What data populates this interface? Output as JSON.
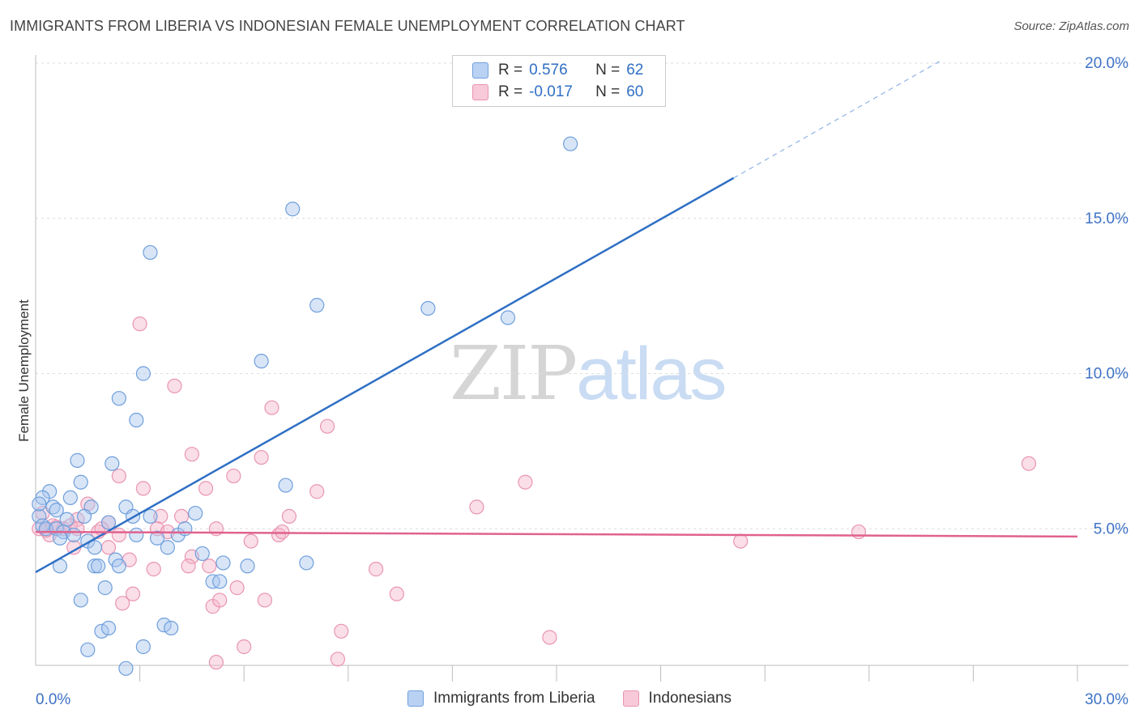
{
  "title": "IMMIGRANTS FROM LIBERIA VS INDONESIAN FEMALE UNEMPLOYMENT CORRELATION CHART",
  "source": "Source: ZipAtlas.com",
  "watermark": {
    "zip": "ZIP",
    "atlas": "atlas"
  },
  "chart_data": {
    "type": "scatter",
    "title": "IMMIGRANTS FROM LIBERIA VS INDONESIAN FEMALE UNEMPLOYMENT CORRELATION CHART",
    "ylabel": "Female Unemployment",
    "xlabel": "",
    "xlim": [
      0,
      30
    ],
    "ylim": [
      0,
      20
    ],
    "x_tick_labels": [
      "0.0%",
      "30.0%"
    ],
    "y_ticks": [
      5,
      10,
      15,
      20
    ],
    "y_tick_labels": [
      "5.0%",
      "10.0%",
      "15.0%",
      "20.0%"
    ],
    "grid": "horizontal dashed",
    "legend_position": "top-center",
    "colors": {
      "blue": "#2f6fc4",
      "blue_fill": "#a9c6ee",
      "pink": "#e0628f",
      "pink_fill": "#f4b6cb"
    },
    "legend": [
      {
        "r_label": "R =",
        "r_value": "0.576",
        "n_label": "N =",
        "n_value": "62"
      },
      {
        "r_label": "R =",
        "r_value": "-0.017",
        "n_label": "N =",
        "n_value": "60"
      }
    ],
    "series": [
      {
        "name": "Immigrants from Liberia",
        "color": "#2f6fc4",
        "trend": {
          "x0": 0,
          "y0": 3.6,
          "x1": 20.1,
          "y1": 16.3,
          "dash_to_x": 26.1,
          "dash_to_y": 20.1
        },
        "points": [
          [
            15.4,
            17.4
          ],
          [
            7.4,
            15.3
          ],
          [
            3.3,
            13.9
          ],
          [
            8.1,
            12.2
          ],
          [
            11.3,
            12.1
          ],
          [
            13.6,
            11.8
          ],
          [
            6.5,
            10.4
          ],
          [
            3.1,
            10.0
          ],
          [
            2.4,
            9.2
          ],
          [
            2.9,
            8.5
          ],
          [
            1.2,
            7.2
          ],
          [
            2.2,
            7.1
          ],
          [
            7.2,
            6.4
          ],
          [
            1.3,
            6.5
          ],
          [
            0.4,
            6.2
          ],
          [
            0.2,
            6.0
          ],
          [
            1.0,
            6.0
          ],
          [
            0.5,
            5.7
          ],
          [
            0.6,
            5.6
          ],
          [
            1.6,
            5.7
          ],
          [
            2.6,
            5.7
          ],
          [
            0.1,
            5.4
          ],
          [
            1.4,
            5.4
          ],
          [
            2.8,
            5.4
          ],
          [
            3.3,
            5.4
          ],
          [
            4.6,
            5.5
          ],
          [
            0.9,
            5.3
          ],
          [
            0.2,
            5.1
          ],
          [
            0.3,
            5.0
          ],
          [
            0.6,
            5.0
          ],
          [
            0.8,
            4.9
          ],
          [
            1.1,
            4.8
          ],
          [
            1.5,
            4.6
          ],
          [
            2.1,
            5.2
          ],
          [
            2.9,
            4.8
          ],
          [
            3.5,
            4.7
          ],
          [
            4.1,
            4.8
          ],
          [
            4.3,
            5.0
          ],
          [
            1.7,
            4.4
          ],
          [
            3.8,
            4.4
          ],
          [
            0.7,
            4.7
          ],
          [
            2.3,
            4.0
          ],
          [
            1.7,
            3.8
          ],
          [
            1.8,
            3.8
          ],
          [
            0.7,
            3.8
          ],
          [
            2.4,
            3.8
          ],
          [
            4.8,
            4.2
          ],
          [
            5.4,
            3.9
          ],
          [
            6.1,
            3.8
          ],
          [
            7.8,
            3.9
          ],
          [
            5.1,
            3.3
          ],
          [
            5.3,
            3.3
          ],
          [
            2.0,
            3.1
          ],
          [
            1.3,
            2.7
          ],
          [
            1.9,
            1.7
          ],
          [
            2.1,
            1.8
          ],
          [
            3.7,
            1.9
          ],
          [
            3.9,
            1.8
          ],
          [
            1.5,
            1.1
          ],
          [
            3.1,
            1.2
          ],
          [
            2.6,
            0.5
          ],
          [
            0.1,
            5.8
          ]
        ]
      },
      {
        "name": "Indonesians",
        "color": "#e0628f",
        "trend": {
          "x0": 0,
          "y0": 4.9,
          "x1": 30,
          "y1": 4.75
        },
        "points": [
          [
            3.0,
            11.6
          ],
          [
            4.0,
            9.6
          ],
          [
            6.8,
            8.9
          ],
          [
            8.4,
            8.3
          ],
          [
            4.5,
            7.4
          ],
          [
            6.5,
            7.3
          ],
          [
            28.6,
            7.1
          ],
          [
            2.4,
            6.7
          ],
          [
            5.7,
            6.7
          ],
          [
            14.1,
            6.5
          ],
          [
            3.1,
            6.3
          ],
          [
            4.9,
            6.3
          ],
          [
            8.1,
            6.2
          ],
          [
            12.7,
            5.7
          ],
          [
            1.5,
            5.8
          ],
          [
            0.2,
            5.5
          ],
          [
            1.2,
            5.3
          ],
          [
            2.1,
            5.2
          ],
          [
            3.6,
            5.4
          ],
          [
            4.2,
            5.4
          ],
          [
            7.3,
            5.4
          ],
          [
            0.5,
            5.1
          ],
          [
            0.8,
            5.0
          ],
          [
            1.0,
            5.1
          ],
          [
            1.2,
            5.0
          ],
          [
            1.8,
            4.9
          ],
          [
            2.4,
            4.8
          ],
          [
            3.5,
            5.0
          ],
          [
            3.8,
            4.9
          ],
          [
            5.2,
            5.0
          ],
          [
            6.2,
            4.6
          ],
          [
            7.0,
            4.8
          ],
          [
            7.1,
            4.9
          ],
          [
            20.3,
            4.6
          ],
          [
            23.7,
            4.9
          ],
          [
            0.1,
            5.0
          ],
          [
            0.4,
            4.8
          ],
          [
            1.1,
            4.4
          ],
          [
            2.1,
            4.4
          ],
          [
            2.7,
            4.0
          ],
          [
            4.5,
            4.1
          ],
          [
            4.4,
            3.8
          ],
          [
            3.4,
            3.7
          ],
          [
            5.0,
            3.8
          ],
          [
            9.8,
            3.7
          ],
          [
            5.8,
            3.1
          ],
          [
            2.8,
            2.9
          ],
          [
            10.4,
            2.9
          ],
          [
            2.5,
            2.6
          ],
          [
            5.1,
            2.5
          ],
          [
            5.3,
            2.7
          ],
          [
            6.6,
            2.7
          ],
          [
            8.8,
            1.7
          ],
          [
            14.8,
            1.5
          ],
          [
            6.0,
            1.2
          ],
          [
            5.2,
            0.7
          ],
          [
            8.7,
            0.8
          ],
          [
            0.3,
            4.95
          ],
          [
            0.6,
            5.05
          ],
          [
            1.9,
            5.0
          ]
        ]
      }
    ]
  }
}
